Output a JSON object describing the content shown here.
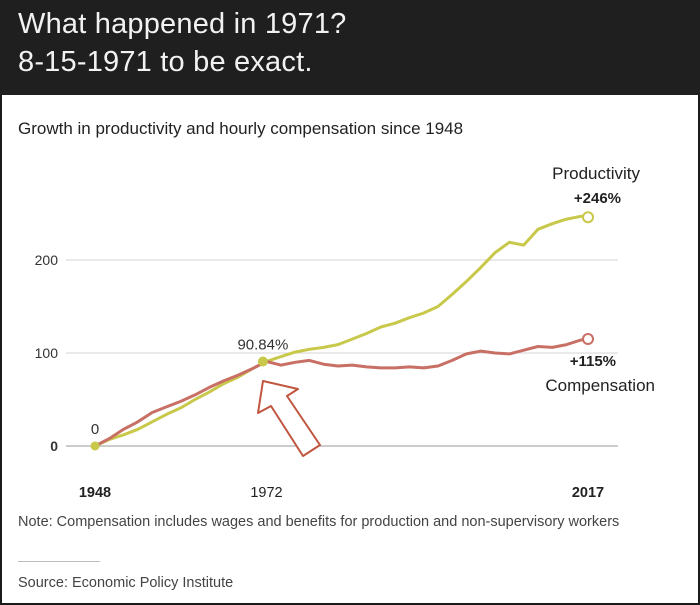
{
  "header": {
    "line1": "What happened in 1971?",
    "line2": "8-15-1971 to be exact."
  },
  "note": "Note: Compensation includes wages and benefits for production and non-supervisory workers",
  "source": "Source: Economic Policy Institute",
  "chart_data": {
    "type": "line",
    "title": "Growth in productivity and hourly compensation since 1948",
    "xlabel": "",
    "ylabel": "",
    "xlim": [
      1948,
      2017
    ],
    "ylim": [
      0,
      250
    ],
    "x_ticks": [
      {
        "value": 1948,
        "label": "1948"
      },
      {
        "value": 1972,
        "label": "1972"
      },
      {
        "value": 2017,
        "label": "2017"
      }
    ],
    "y_ticks": [
      {
        "value": 0,
        "label": "0"
      },
      {
        "value": 100,
        "label": "100"
      },
      {
        "value": 200,
        "label": "200"
      }
    ],
    "grid": true,
    "series": [
      {
        "name": "Productivity",
        "end_label": "+246%",
        "color": "#c8c84a",
        "x": [
          1948,
          1950,
          1952,
          1954,
          1956,
          1958,
          1960,
          1962,
          1964,
          1966,
          1968,
          1970,
          1972,
          1974,
          1976,
          1978,
          1980,
          1982,
          1984,
          1986,
          1988,
          1990,
          1992,
          1994,
          1996,
          1998,
          2000,
          2002,
          2004,
          2006,
          2008,
          2010,
          2012,
          2014,
          2016,
          2017
        ],
        "values": [
          0,
          7,
          12,
          18,
          26,
          34,
          41,
          50,
          58,
          67,
          74,
          83,
          91,
          96,
          101,
          104,
          106,
          109,
          115,
          121,
          128,
          132,
          138,
          143,
          150,
          163,
          177,
          192,
          208,
          219,
          216,
          233,
          239,
          244,
          247,
          246
        ]
      },
      {
        "name": "Compensation",
        "end_label": "+115%",
        "color": "#c87065",
        "x": [
          1948,
          1950,
          1952,
          1954,
          1956,
          1958,
          1960,
          1962,
          1964,
          1966,
          1968,
          1970,
          1972,
          1974,
          1976,
          1978,
          1980,
          1982,
          1984,
          1986,
          1988,
          1990,
          1992,
          1994,
          1996,
          1998,
          2000,
          2002,
          2004,
          2006,
          2008,
          2010,
          2012,
          2014,
          2016,
          2017
        ],
        "values": [
          0,
          8,
          18,
          26,
          36,
          42,
          48,
          55,
          63,
          70,
          76,
          83,
          91,
          87,
          90,
          92,
          88,
          86,
          87,
          85,
          84,
          84,
          85,
          84,
          86,
          92,
          99,
          102,
          100,
          99,
          103,
          107,
          106,
          109,
          114,
          115
        ]
      }
    ],
    "annotations": [
      {
        "text": "0",
        "x": 1948,
        "y": 0
      },
      {
        "text": "90.84%",
        "x": 1971.5,
        "y": 90.84
      }
    ]
  }
}
